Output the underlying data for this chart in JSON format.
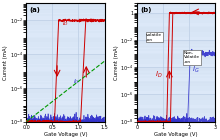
{
  "fig_width": 2.2,
  "fig_height": 1.4,
  "dpi": 100,
  "background_color": "#ffffff",
  "panel_a": {
    "label": "(a)",
    "xlabel": "Gate Voltage (V)",
    "ylabel": "Current (mA)",
    "xlim": [
      0.0,
      1.5
    ],
    "ylim": [
      1e-08,
      0.1
    ],
    "xticks": [
      0.0,
      0.5,
      1.0,
      1.5
    ],
    "yticks": [
      1e-08,
      1e-06,
      0.0001,
      0.01
    ],
    "ytick_labels": [
      "10$^{-8}$",
      "10$^{-6}$",
      "10$^{-4}$",
      "10$^{-2}$"
    ],
    "drain_color": "#cc0000",
    "gate_color": "#3333cc",
    "green_color": "#009900",
    "noise_floor": 1e-08,
    "id_on": 0.01,
    "vt_fwd": 0.58,
    "vt_bwd": 1.1,
    "bg_color": "#dce8f8"
  },
  "panel_b": {
    "label": "(b)",
    "xlabel": "Gate Voltage (V)",
    "ylabel": "Current (mA)",
    "xlim": [
      0.0,
      3.0
    ],
    "ylim": [
      1e-08,
      5.0
    ],
    "xticks": [
      0.0,
      1.0,
      2.0,
      3.0
    ],
    "yticks": [
      1e-08,
      1e-06,
      0.0001,
      0.01,
      1.0
    ],
    "ytick_labels": [
      "10$^{-8}$",
      "10$^{-6}$",
      "10$^{-4}$",
      "10$^{-2}$",
      "1"
    ],
    "drain_color": "#cc0000",
    "gate_color": "#3333cc",
    "noise_floor": 1e-08,
    "id_on": 1.0,
    "ig_on": 0.001,
    "vt_fwd": 1.2,
    "vt_bwd": 1.35,
    "vg_ig_jump": 2.0,
    "bg_color": "#dce8f8"
  }
}
